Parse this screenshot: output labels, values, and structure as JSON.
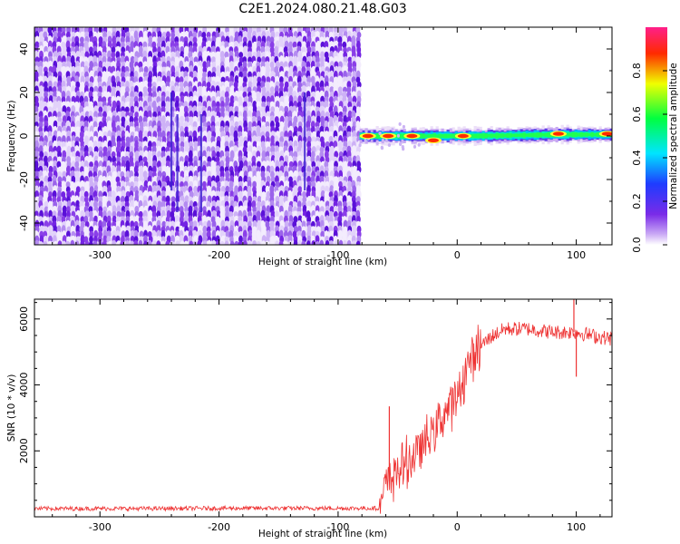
{
  "figure": {
    "title": "C2E1.2024.080.21.48.G03"
  },
  "chart_data": [
    {
      "type": "heatmap",
      "title": "",
      "xlabel": "Height of straight line (km)",
      "ylabel": "Frequency (Hz)",
      "xlim": [
        -355,
        130
      ],
      "ylim": [
        -50,
        50
      ],
      "xticks": [
        -300,
        -200,
        -100,
        0,
        100
      ],
      "yticks": [
        -40,
        -20,
        0,
        20,
        40
      ],
      "xtick_labels": [
        "-300",
        "-200",
        "-100",
        "0",
        "100"
      ],
      "ytick_labels": [
        "-40",
        "-20",
        "0",
        "20",
        "40"
      ],
      "noise_region_x": [
        -355,
        -82
      ],
      "signal_region_x": [
        -82,
        130
      ],
      "signal_center_freq_hz": 0,
      "signal_peaks": [
        {
          "x": -75,
          "y": 0
        },
        {
          "x": -58,
          "y": 0
        },
        {
          "x": -38,
          "y": 0
        },
        {
          "x": -20,
          "y": -2
        },
        {
          "x": 5,
          "y": 0
        },
        {
          "x": 85,
          "y": 1
        },
        {
          "x": 126,
          "y": 1
        }
      ],
      "colorbar": {
        "label": "Normalized spectral amplitude",
        "range": [
          0,
          1
        ],
        "ticks": [
          0.0,
          0.2,
          0.4,
          0.6,
          0.8
        ],
        "tick_labels": [
          "0.0",
          "0.2",
          "0.4",
          "0.6",
          "0.8"
        ],
        "colormap": [
          "#ffffff",
          "#8a2be2",
          "#0000ff",
          "#00ffff",
          "#00ff00",
          "#ffff00",
          "#ff0000",
          "#ff1493"
        ]
      },
      "grid": false
    },
    {
      "type": "line",
      "title": "",
      "xlabel": "Height of straight line (km)",
      "ylabel": "SNR (10 * v/v)",
      "xlim": [
        -355,
        130
      ],
      "ylim": [
        0,
        6600
      ],
      "xticks": [
        -300,
        -200,
        -100,
        0,
        100
      ],
      "yticks": [
        2000,
        4000,
        6000
      ],
      "xtick_labels": [
        "-300",
        "-200",
        "-100",
        "0",
        "100"
      ],
      "ytick_labels": [
        "2000",
        "4000",
        "6000"
      ],
      "color": "#ee3333",
      "series": [
        {
          "x": [
            -355,
            -300,
            -250,
            -200,
            -150,
            -100,
            -65,
            -60,
            -55,
            -50,
            -40,
            -30,
            -20,
            -10,
            0,
            10,
            20,
            30,
            40,
            60,
            80,
            100,
            120,
            130
          ],
          "y": [
            250,
            250,
            250,
            260,
            260,
            260,
            260,
            900,
            1200,
            1400,
            1700,
            2100,
            2600,
            3200,
            3600,
            4700,
            5200,
            5500,
            5700,
            5700,
            5600,
            5600,
            5450,
            5400
          ]
        }
      ],
      "spikes": [
        {
          "x": -57,
          "y": 3350
        },
        {
          "x": 98,
          "y": 6600
        },
        {
          "x": 100,
          "y": 4250
        }
      ],
      "grid": false
    }
  ]
}
